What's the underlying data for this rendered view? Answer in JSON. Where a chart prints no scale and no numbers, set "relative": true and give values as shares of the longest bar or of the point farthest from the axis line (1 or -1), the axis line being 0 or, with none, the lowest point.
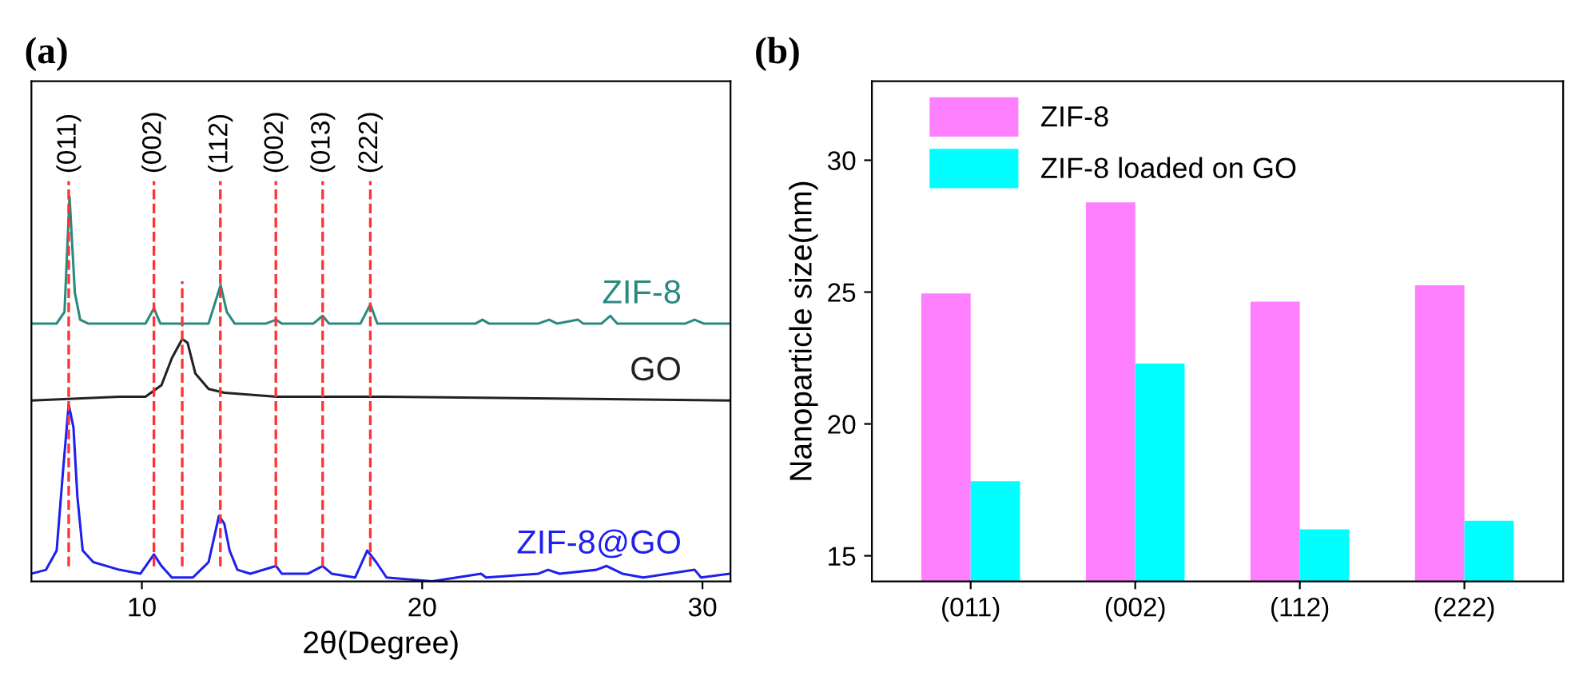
{
  "chart_data": [
    {
      "type": "line",
      "title": "(a)",
      "xlabel": "2θ(Degree)",
      "relative": true,
      "xlim": [
        6.06,
        31.0
      ],
      "xticks": [
        10,
        20,
        30
      ],
      "tick_labels": "x",
      "grid": false,
      "line_style": "solid",
      "marker": "none",
      "series": [
        {
          "name": "ZIF-8",
          "color": "#2a8a80",
          "x": [
            6.06,
            6.96,
            7.24,
            7.42,
            7.61,
            7.8,
            8.08,
            10.13,
            10.43,
            10.66,
            11.07,
            12.38,
            12.81,
            13.03,
            13.31,
            14.43,
            14.79,
            14.99,
            16.12,
            16.45,
            16.68,
            17.8,
            18.15,
            18.4,
            18.92,
            21.91,
            22.15,
            22.38,
            24.15,
            24.53,
            24.81,
            25.56,
            25.74,
            26.4,
            26.71,
            26.96,
            29.39,
            29.72,
            30.04,
            31.0
          ],
          "values": [
            0.67,
            0.67,
            0.7,
            1.0,
            0.75,
            0.68,
            0.67,
            0.67,
            0.71,
            0.67,
            0.67,
            0.67,
            0.77,
            0.7,
            0.67,
            0.67,
            0.68,
            0.67,
            0.67,
            0.69,
            0.67,
            0.67,
            0.72,
            0.67,
            0.67,
            0.67,
            0.68,
            0.67,
            0.67,
            0.68,
            0.67,
            0.68,
            0.67,
            0.67,
            0.69,
            0.67,
            0.67,
            0.68,
            0.67,
            0.67
          ]
        },
        {
          "name": "GO",
          "color": "#222222",
          "x": [
            6.06,
            9.2,
            10.13,
            10.7,
            11.07,
            11.44,
            11.63,
            11.91,
            12.38,
            12.94,
            14.81,
            18.55,
            31.0
          ],
          "values": [
            0.47,
            0.48,
            0.48,
            0.51,
            0.58,
            0.63,
            0.62,
            0.54,
            0.5,
            0.49,
            0.48,
            0.48,
            0.47
          ]
        },
        {
          "name": "ZIF-8@GO",
          "color": "#2020ee",
          "x": [
            6.06,
            6.58,
            6.96,
            7.18,
            7.39,
            7.56,
            7.7,
            7.89,
            8.27,
            9.2,
            9.95,
            10.43,
            10.7,
            11.07,
            11.82,
            12.38,
            12.75,
            12.94,
            13.13,
            13.41,
            13.87,
            14.79,
            14.99,
            15.93,
            16.45,
            16.77,
            17.61,
            18.04,
            18.36,
            18.73,
            20.36,
            22.1,
            22.28,
            24.15,
            24.49,
            24.9,
            26.21,
            26.58,
            27.14,
            27.89,
            29.72,
            29.95,
            31.0
          ],
          "values": [
            0.02,
            0.03,
            0.08,
            0.28,
            0.46,
            0.4,
            0.22,
            0.08,
            0.05,
            0.03,
            0.02,
            0.07,
            0.04,
            0.01,
            0.01,
            0.05,
            0.17,
            0.15,
            0.08,
            0.03,
            0.02,
            0.04,
            0.02,
            0.02,
            0.04,
            0.02,
            0.01,
            0.08,
            0.05,
            0.01,
            0.0,
            0.02,
            0.01,
            0.02,
            0.03,
            0.02,
            0.03,
            0.04,
            0.02,
            0.01,
            0.03,
            0.01,
            0.02
          ]
        }
      ],
      "ref_lines": [
        {
          "axis": "x",
          "value": 7.39,
          "color": "#ff3333",
          "line_style": "dashed"
        },
        {
          "axis": "x",
          "value": 10.43,
          "color": "#ff3333",
          "line_style": "dashed"
        },
        {
          "axis": "x",
          "value": 12.8,
          "color": "#ff3333",
          "line_style": "dashed"
        },
        {
          "axis": "x",
          "value": 14.78,
          "color": "#ff3333",
          "line_style": "dashed"
        },
        {
          "axis": "x",
          "value": 16.45,
          "color": "#ff3333",
          "line_style": "dashed"
        },
        {
          "axis": "x",
          "value": 18.15,
          "color": "#ff3333",
          "line_style": "dashed"
        },
        {
          "axis": "x",
          "value": 11.44,
          "color": "#ff3333",
          "line_style": "dashed"
        }
      ],
      "annotations": [
        "(011)",
        "(002)",
        "(112)",
        "(002)",
        "(013)",
        "(222)"
      ]
    },
    {
      "type": "bar",
      "title": "(b)",
      "ylabel": "Nanoparticle size(nm)",
      "categories": [
        "(011)",
        "(002)",
        "(112)",
        "(222)"
      ],
      "ylim": [
        14.03,
        33.0
      ],
      "yticks": [
        15,
        20,
        25,
        30
      ],
      "grid": false,
      "legend": "top left",
      "series": [
        {
          "name": "ZIF-8",
          "color": "#ff80ff",
          "values": [
            24.95,
            28.4,
            24.64,
            25.26
          ]
        },
        {
          "name": "ZIF-8 loaded on GO",
          "color": "#00ffff",
          "values": [
            17.83,
            22.29,
            16.0,
            16.33
          ]
        }
      ]
    }
  ]
}
